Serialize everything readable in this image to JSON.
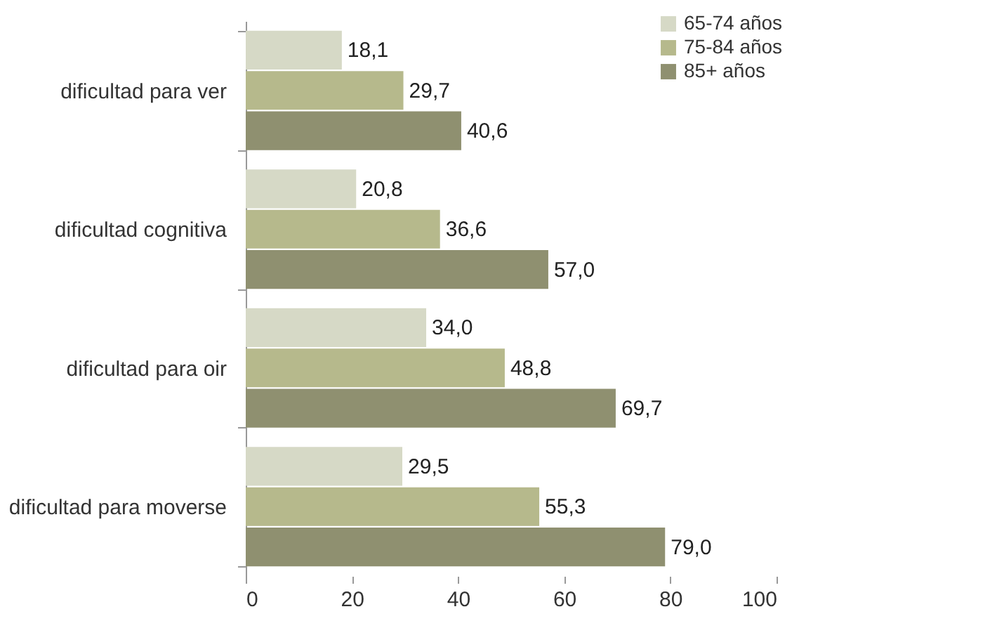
{
  "chart_data": {
    "type": "bar",
    "orientation": "horizontal",
    "categories": [
      "dificultad para ver",
      "dificultad cognitiva",
      "dificultad para oir",
      "dificultad para moverse"
    ],
    "series": [
      {
        "name": "65-74 años",
        "color": "#d6d9c6",
        "values": [
          18.1,
          20.8,
          34.0,
          29.5
        ],
        "value_labels": [
          "18,1",
          "20,8",
          "34,0",
          "29,5"
        ]
      },
      {
        "name": "75-84 años",
        "color": "#b6b98c",
        "values": [
          29.7,
          36.6,
          48.8,
          55.3
        ],
        "value_labels": [
          "29,7",
          "36,6",
          "48,8",
          "55,3"
        ]
      },
      {
        "name": "85+ años",
        "color": "#8f9070",
        "values": [
          40.6,
          57.0,
          69.7,
          79.0
        ],
        "value_labels": [
          "40,6",
          "57,0",
          "69,7",
          "79,0"
        ]
      }
    ],
    "xlim": [
      0,
      100
    ],
    "xticks": [
      0,
      20,
      40,
      60,
      80,
      100
    ],
    "grid": false,
    "legend": "top right"
  }
}
